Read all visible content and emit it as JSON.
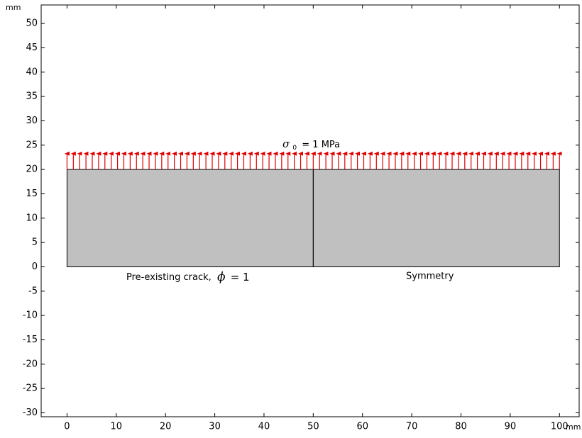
{
  "plot": {
    "x_unit": "mm",
    "y_unit": "mm",
    "xlim": [
      -5.25,
      104.0
    ],
    "ylim": [
      -30.8,
      53.8
    ],
    "x_ticks": [
      0,
      10,
      20,
      30,
      40,
      50,
      60,
      70,
      80,
      90,
      100
    ],
    "y_ticks": [
      -30,
      -25,
      -20,
      -15,
      -10,
      -5,
      0,
      5,
      10,
      15,
      20,
      25,
      30,
      35,
      40,
      45,
      50
    ],
    "background": "#ffffff",
    "axis_color": "#000000"
  },
  "geometry": {
    "domain": {
      "x": [
        0,
        100
      ],
      "y": [
        0,
        20
      ]
    },
    "fill_color": "#c0c0c0",
    "edge_color": "#000000",
    "divider_x": 50
  },
  "load": {
    "arrow_color": "#e00000",
    "arrow_count": 79,
    "arrow_y_start": 20,
    "arrow_length_mm": 3.4,
    "label_symbol": "σ",
    "label_subscript": "0",
    "label_value": "= 1 MPa"
  },
  "annotations": {
    "crack_text": "Pre-existing crack,",
    "crack_symbol": "ϕ",
    "crack_value": "= 1",
    "symmetry_text": "Symmetry"
  }
}
